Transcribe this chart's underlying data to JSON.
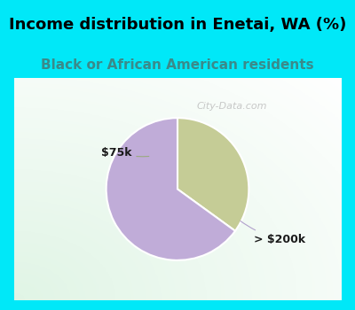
{
  "title": "Income distribution in Enetai, WA (%)",
  "subtitle": "Black or African American residents",
  "slices": [
    {
      "label": "$75k",
      "value": 35,
      "color": "#c5cc96"
    },
    {
      "label": "> $200k",
      "value": 65,
      "color": "#c0acd8"
    }
  ],
  "title_fontsize": 13,
  "subtitle_fontsize": 11,
  "title_color": "#000000",
  "subtitle_color": "#3a8a8a",
  "bg_cyan": "#00e8f8",
  "chart_bg_color": "#e8f5ee",
  "watermark": "City-Data.com",
  "start_angle": 90,
  "border_width": 8
}
